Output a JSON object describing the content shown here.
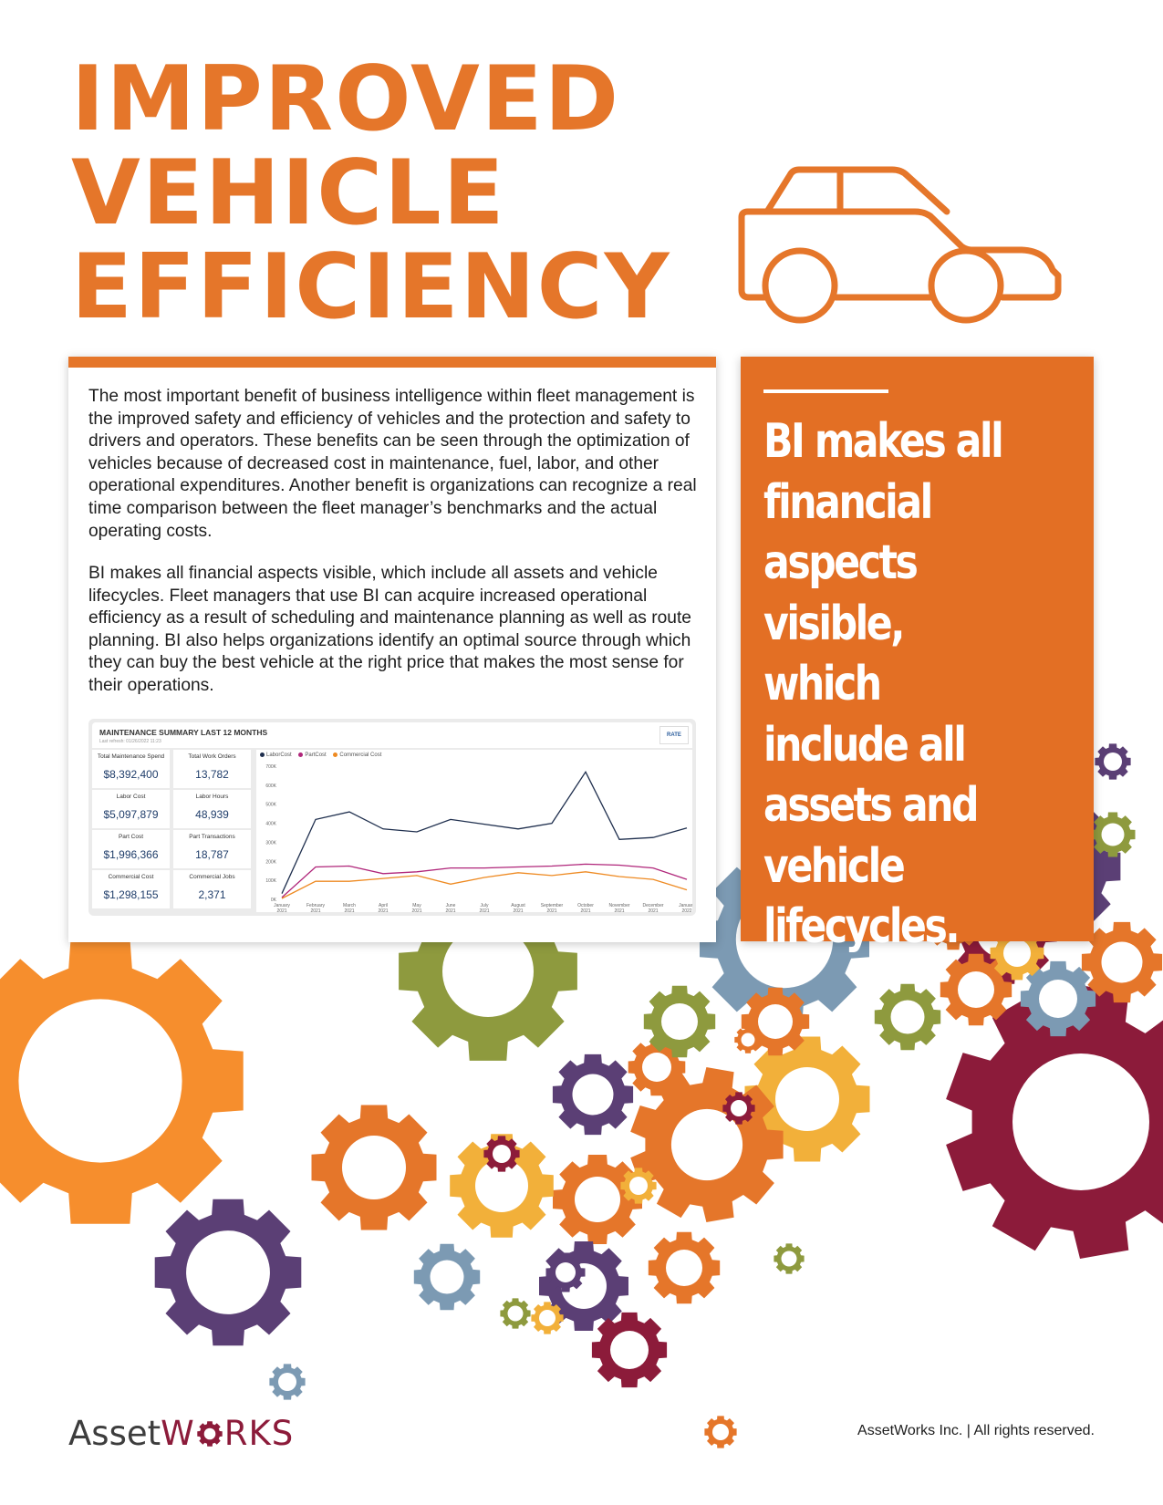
{
  "title": {
    "line1": "IMPROVED",
    "line2": "VEHICLE",
    "line3": "EFFICIENCY"
  },
  "body": {
    "paragraph1": "The most important benefit of business intelligence within fleet management is the improved safety and efficiency of vehicles and the protection and safety to drivers and operators. These benefits can be seen through the optimization of vehicles because of decreased cost in maintenance, fuel, labor, and other operational expenditures. Another benefit is organizations can recognize a real time comparison between the fleet manager’s benchmarks and the actual operating costs.",
    "paragraph2": "BI makes all financial aspects visible, which include all assets and vehicle lifecycles. Fleet managers that use BI can acquire increased operational efficiency as a result of scheduling and maintenance planning as well as route planning. BI also helps organizations identify an optimal source through which they can buy the best vehicle at the right price that makes the most sense for their operations."
  },
  "dashboard": {
    "title": "MAINTENANCE SUMMARY LAST 12 MONTHS",
    "subtitle": "Last refresh: 01/26/2022 11:23",
    "button": "RATE",
    "kpis": [
      {
        "label": "Total Maintenance Spend",
        "value": "$8,392,400"
      },
      {
        "label": "Total Work Orders",
        "value": "13,782"
      },
      {
        "label": "Labor Cost",
        "value": "$5,097,879"
      },
      {
        "label": "Labor Hours",
        "value": "48,939"
      },
      {
        "label": "Part Cost",
        "value": "$1,996,366"
      },
      {
        "label": "Part Transactions",
        "value": "18,787"
      },
      {
        "label": "Commercial Cost",
        "value": "$1,298,155"
      },
      {
        "label": "Commercial Jobs",
        "value": "2,371"
      }
    ]
  },
  "chart_data": {
    "type": "line",
    "title": "",
    "xlabel": "",
    "ylabel": "",
    "x": [
      "January 2021",
      "February 2021",
      "March 2021",
      "April 2021",
      "May 2021",
      "June 2021",
      "July 2021",
      "August 2021",
      "September 2021",
      "October 2021",
      "November 2021",
      "December 2021",
      "January 2022"
    ],
    "y_ticks": [
      "0K",
      "100K",
      "200K",
      "300K",
      "400K",
      "500K",
      "600K",
      "700K"
    ],
    "ylim": [
      0,
      700000
    ],
    "legend_position": "top-left",
    "series": [
      {
        "name": "LaborCost",
        "color": "#1f2f4e",
        "values": [
          30000,
          420000,
          460000,
          370000,
          355000,
          420000,
          395000,
          370000,
          400000,
          670000,
          315000,
          325000,
          375000
        ]
      },
      {
        "name": "PartCost",
        "color": "#b0267a",
        "values": [
          10000,
          170000,
          175000,
          135000,
          145000,
          165000,
          165000,
          170000,
          175000,
          185000,
          180000,
          165000,
          105000
        ]
      },
      {
        "name": "Commercial Cost",
        "color": "#ee8a22",
        "values": [
          5000,
          95000,
          95000,
          110000,
          125000,
          80000,
          115000,
          140000,
          125000,
          145000,
          120000,
          105000,
          50000
        ]
      }
    ]
  },
  "callout": {
    "text": "BI makes all financial aspects visible, which include all assets and vehicle lifecycles."
  },
  "logo": {
    "text_asset": "Asset",
    "text_w": "W",
    "text_rks": "RKS"
  },
  "footer": {
    "text": "AssetWorks Inc.  |  All rights reserved."
  },
  "colors": {
    "accent": "#E5762A",
    "callout_bg": "#E36F24",
    "logo_red": "#8c1b3a"
  }
}
